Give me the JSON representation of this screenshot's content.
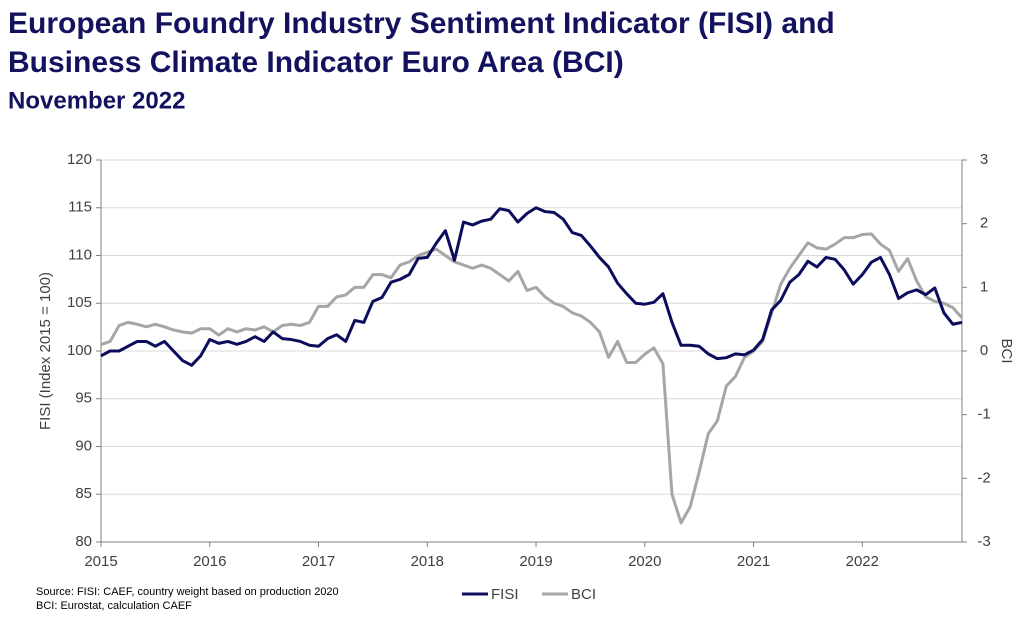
{
  "chart_data": {
    "type": "line",
    "title": [
      "European Foundry Industry Sentiment Indicator (FISI) and",
      "Business Climate Indicator Euro Area (BCI)"
    ],
    "subtitle": "November 2022",
    "ylabel": "FISI (Index 2015 = 100)",
    "y2label": "BCI",
    "source": [
      "Source: FISI: CAEF, country weight based on production 2020",
      "BCI: Eurostat, calculation CAEF"
    ],
    "categories": [
      "2015",
      null,
      null,
      null,
      null,
      null,
      null,
      null,
      null,
      null,
      null,
      null,
      "2016",
      null,
      null,
      null,
      null,
      null,
      null,
      null,
      null,
      null,
      null,
      null,
      "2017",
      null,
      null,
      null,
      null,
      null,
      null,
      null,
      null,
      null,
      null,
      null,
      "2018",
      null,
      null,
      null,
      null,
      null,
      null,
      null,
      null,
      null,
      null,
      null,
      "2019",
      null,
      null,
      null,
      null,
      null,
      null,
      null,
      null,
      null,
      null,
      null,
      "2020",
      null,
      null,
      null,
      null,
      null,
      null,
      null,
      null,
      null,
      null,
      null,
      "2021",
      null,
      null,
      null,
      null,
      null,
      null,
      null,
      null,
      null,
      null,
      null,
      "2022",
      null,
      null,
      null,
      null,
      null,
      null,
      null,
      null,
      null,
      null,
      null
    ],
    "series": [
      {
        "name": "FISI",
        "color": "#0c0c5c",
        "axis": "y",
        "values": [
          99.5,
          100,
          100,
          100.5,
          101,
          101,
          100.5,
          101,
          100,
          99,
          98.5,
          99.5,
          101.2,
          100.8,
          101,
          100.7,
          101,
          101.5,
          101,
          102,
          101.3,
          101.2,
          101,
          100.6,
          100.5,
          101.3,
          101.7,
          101,
          103.2,
          103,
          105.2,
          105.6,
          107.2,
          107.5,
          108,
          109.7,
          109.8,
          111.3,
          112.6,
          109.5,
          113.5,
          113.2,
          113.6,
          113.8,
          114.9,
          114.7,
          113.5,
          114.4,
          115,
          114.6,
          114.5,
          113.8,
          112.4,
          112.1,
          111,
          109.8,
          108.8,
          107.1,
          106,
          105,
          104.9,
          105.1,
          106,
          103,
          100.6,
          100.6,
          100.5,
          99.7,
          99.2,
          99.3,
          99.7,
          99.6,
          100.1,
          101.2,
          104.3,
          105.3,
          107.2,
          108,
          109.4,
          108.8,
          109.8,
          109.6,
          108.5,
          107,
          108,
          109.3,
          109.8,
          108,
          105.5,
          106.1,
          106.4,
          105.9,
          106.6,
          104,
          102.8,
          103
        ]
      },
      {
        "name": "BCI",
        "color": "#a6a6a6",
        "axis": "y2",
        "values": [
          0.1,
          0.15,
          0.4,
          0.45,
          0.42,
          0.38,
          0.42,
          0.38,
          0.33,
          0.3,
          0.28,
          0.35,
          0.35,
          0.25,
          0.35,
          0.3,
          0.35,
          0.33,
          0.38,
          0.3,
          0.4,
          0.42,
          0.4,
          0.45,
          0.7,
          0.7,
          0.85,
          0.88,
          1.0,
          1.0,
          1.2,
          1.2,
          1.15,
          1.35,
          1.4,
          1.5,
          1.55,
          1.6,
          1.5,
          1.4,
          1.35,
          1.3,
          1.35,
          1.3,
          1.2,
          1.1,
          1.25,
          0.95,
          1.0,
          0.85,
          0.75,
          0.7,
          0.6,
          0.55,
          0.45,
          0.3,
          -0.1,
          0.15,
          -0.18,
          -0.18,
          -0.05,
          0.05,
          -0.2,
          -2.25,
          -2.7,
          -2.45,
          -1.9,
          -1.3,
          -1.1,
          -0.55,
          -0.4,
          -0.1,
          0.0,
          0.15,
          0.6,
          1.05,
          1.3,
          1.5,
          1.7,
          1.62,
          1.6,
          1.68,
          1.78,
          1.78,
          1.83,
          1.84,
          1.68,
          1.58,
          1.25,
          1.45,
          1.1,
          0.85,
          0.78,
          0.75,
          0.68,
          0.52
        ]
      }
    ],
    "ylim": [
      80,
      120
    ],
    "yticks": [
      80,
      85,
      90,
      95,
      100,
      105,
      110,
      115,
      120
    ],
    "y2lim": [
      -3,
      3
    ],
    "y2ticks": [
      -3,
      -2,
      -1,
      0,
      1,
      2,
      3
    ],
    "grid": true,
    "legend": "bottom"
  }
}
